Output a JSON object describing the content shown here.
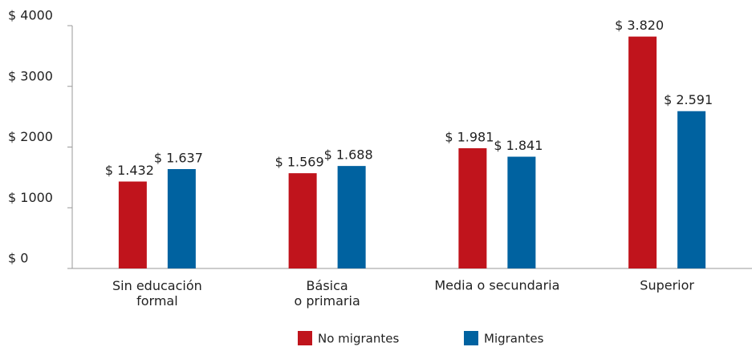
{
  "chart_data": {
    "type": "bar",
    "categories": [
      "Sin educación\nformal",
      "Básica\no primaria",
      "Media o secundaria",
      "Superior"
    ],
    "series": [
      {
        "name": "No migrantes",
        "color": "#c0141c",
        "values": [
          1432,
          1569,
          1981,
          3820
        ],
        "value_labels": [
          "$ 1.432",
          "$ 1.569",
          "$  1.981",
          "$ 3.820"
        ]
      },
      {
        "name": "Migrantes",
        "color": "#0062a0",
        "values": [
          1637,
          1688,
          1841,
          2591
        ],
        "value_labels": [
          "$  1.637",
          "$  1.688",
          "$ 1.841",
          "$ 2.591"
        ]
      }
    ],
    "ylim": [
      0,
      4000
    ],
    "yticks": [
      {
        "value": 0,
        "label": "$ 0"
      },
      {
        "value": 1000,
        "label": "$ 1000"
      },
      {
        "value": 2000,
        "label": "$ 2000"
      },
      {
        "value": 3000,
        "label": "$ 3000"
      },
      {
        "value": 4000,
        "label": "$ 4000"
      }
    ],
    "legend": "bottom"
  }
}
